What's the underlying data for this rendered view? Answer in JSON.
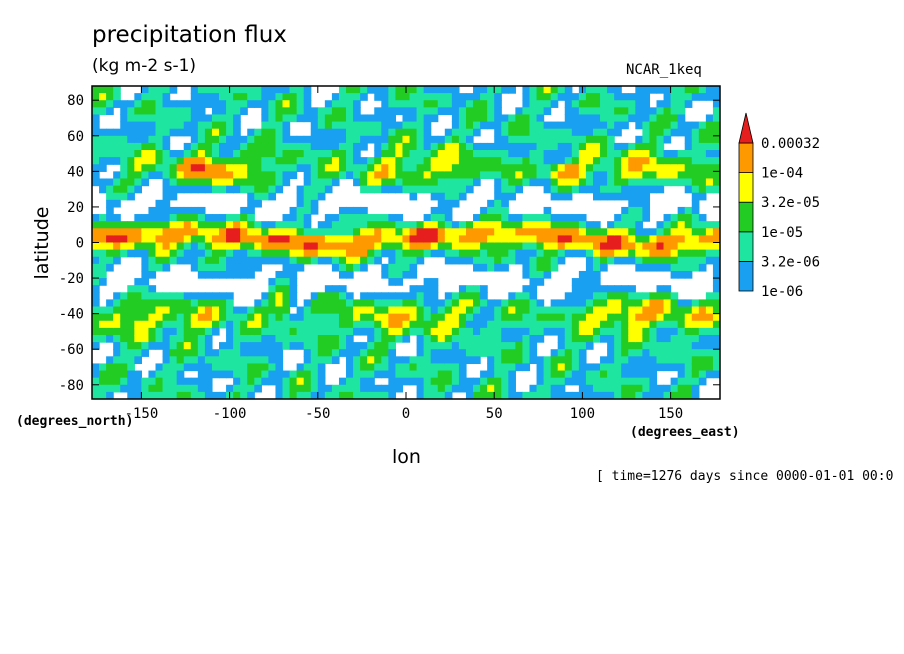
{
  "chart_data": {
    "type": "heatmap",
    "title": "precipitation flux",
    "units": "(kg m-2 s-1)",
    "model": "NCAR_1keq",
    "xlabel": "lon",
    "ylabel": "latitude",
    "xunits": "(degrees_east)",
    "yunits": "(degrees_north)",
    "time_label": "[ time=1276 days since 0000-01-01 00:0",
    "xlim": [
      -178,
      178
    ],
    "ylim": [
      -88,
      88
    ],
    "x_ticks": [
      -150,
      -100,
      -50,
      0,
      50,
      100,
      150
    ],
    "y_ticks": [
      80,
      60,
      40,
      20,
      0,
      -20,
      -40,
      -60,
      -80
    ],
    "x_tick_labels": [
      "-150",
      "-100",
      "-50",
      "0",
      "50",
      "100",
      "150"
    ],
    "y_tick_labels": [
      "80",
      "60",
      "40",
      "20",
      "0",
      "-20",
      "-40",
      "-60",
      "-80"
    ],
    "colorbar": {
      "levels": [
        "1e-06",
        "3.2e-06",
        "1e-05",
        "3.2e-05",
        "1e-04",
        "0.00032"
      ],
      "colors": [
        "#1aa0f0",
        "#1ee6a0",
        "#22cc22",
        "#ffff00",
        "#ff9900",
        "#e61e1e"
      ]
    }
  }
}
